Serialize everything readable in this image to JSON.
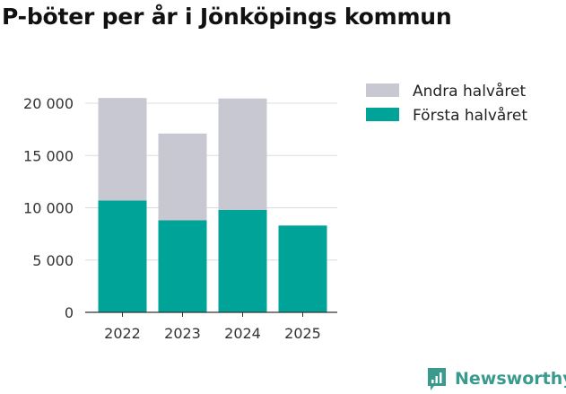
{
  "chart_data": {
    "type": "bar",
    "stacked": true,
    "title": "P-böter per år i Jönköpings kommun",
    "categories": [
      "2022",
      "2023",
      "2024",
      "2025"
    ],
    "series": [
      {
        "name": "Första halvåret",
        "color": "#00a397",
        "values": [
          10700,
          8800,
          9800,
          8300
        ]
      },
      {
        "name": "Andra halvåret",
        "color": "#c8c8d2",
        "values": [
          9800,
          8300,
          10650,
          0
        ]
      }
    ],
    "legend_order": [
      "Andra halvåret",
      "Första halvåret"
    ],
    "legend_position": "right",
    "ylim": [
      0,
      20000
    ],
    "yticks": [
      0,
      5000,
      10000,
      15000,
      20000
    ],
    "ytick_labels": [
      "0",
      "5 000",
      "10 000",
      "15 000",
      "20 000"
    ],
    "grid": "horizontal",
    "xlabel": "",
    "ylabel": ""
  },
  "branding": {
    "logo_text": "Newsworthy",
    "logo_icon": "newsworthy-chart-icon",
    "color": "#3a9a8e"
  }
}
